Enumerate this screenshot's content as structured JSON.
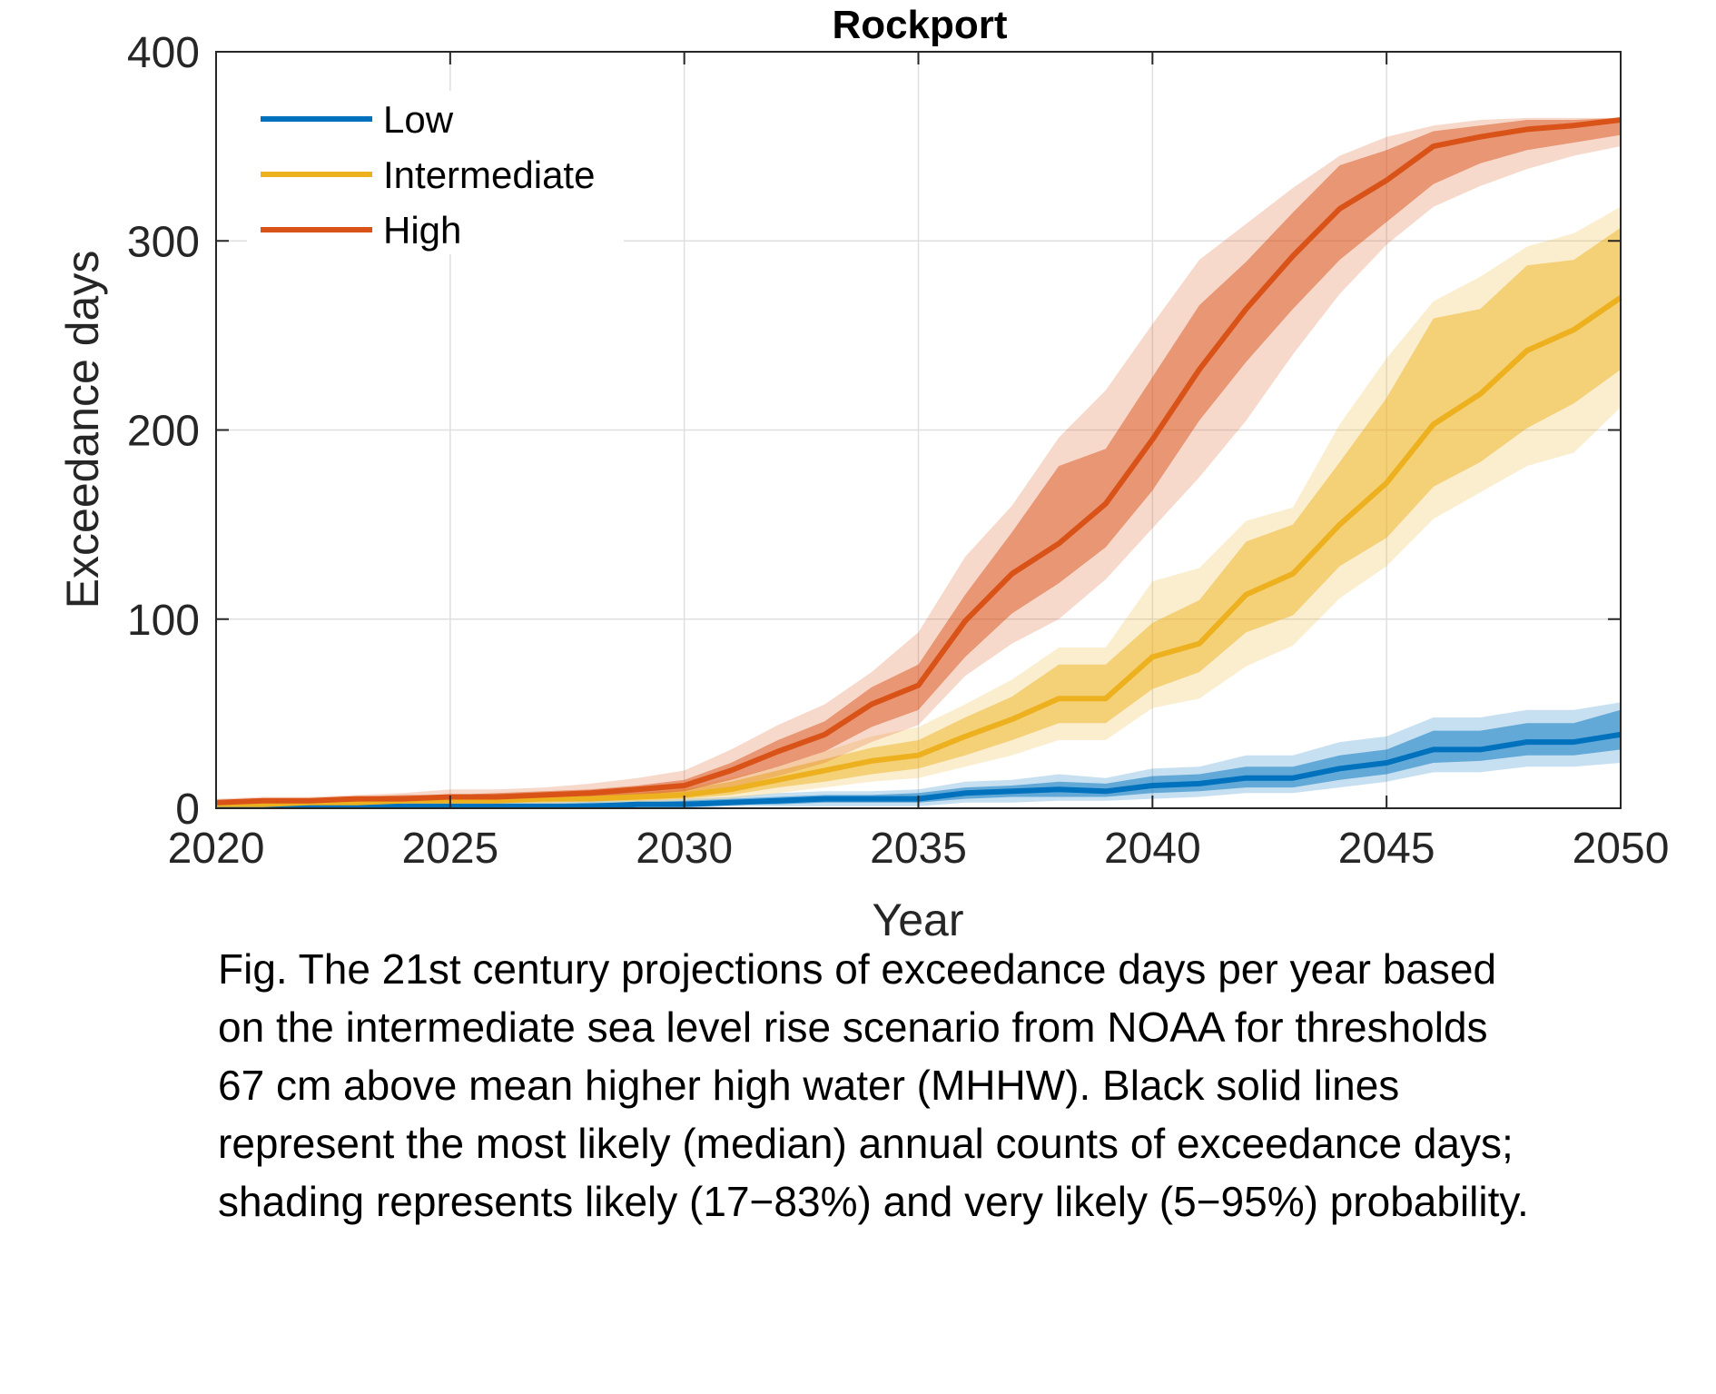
{
  "chart_data": {
    "type": "line",
    "title": "Rockport",
    "xlabel": "Year",
    "ylabel": "Exceedance days",
    "xlim": [
      2020,
      2050
    ],
    "ylim": [
      0,
      400
    ],
    "xticks": [
      2020,
      2025,
      2030,
      2035,
      2040,
      2045,
      2050
    ],
    "yticks": [
      0,
      100,
      200,
      300,
      400
    ],
    "grid": true,
    "legend_position": "top-left",
    "x": [
      2020,
      2021,
      2022,
      2023,
      2024,
      2025,
      2026,
      2027,
      2028,
      2029,
      2030,
      2031,
      2032,
      2033,
      2034,
      2035,
      2036,
      2037,
      2038,
      2039,
      2040,
      2041,
      2042,
      2043,
      2044,
      2045,
      2046,
      2047,
      2048,
      2049,
      2050
    ],
    "series": [
      {
        "name": "Low",
        "color": "#0072BD",
        "median": [
          1,
          1,
          1,
          1,
          1,
          1,
          1,
          1,
          1,
          2,
          2,
          3,
          4,
          5,
          5,
          5,
          8,
          9,
          10,
          9,
          12,
          13,
          16,
          16,
          21,
          24,
          31,
          31,
          35,
          35,
          39
        ],
        "likely_low": [
          0,
          0,
          0,
          0,
          0,
          0,
          0,
          0,
          1,
          1,
          1,
          2,
          2,
          3,
          3,
          3,
          5,
          6,
          6,
          6,
          8,
          9,
          11,
          11,
          15,
          18,
          24,
          25,
          28,
          28,
          31
        ],
        "likely_high": [
          2,
          2,
          2,
          2,
          2,
          2,
          2,
          2,
          3,
          3,
          4,
          5,
          6,
          7,
          7,
          8,
          11,
          12,
          14,
          13,
          17,
          18,
          22,
          22,
          28,
          31,
          41,
          41,
          45,
          45,
          52
        ],
        "very_likely_low": [
          0,
          0,
          0,
          0,
          0,
          0,
          0,
          0,
          0,
          0,
          0,
          1,
          1,
          1,
          1,
          1,
          3,
          3,
          4,
          4,
          5,
          6,
          8,
          8,
          11,
          14,
          19,
          19,
          22,
          22,
          24
        ],
        "very_likely_high": [
          3,
          3,
          3,
          3,
          3,
          3,
          3,
          3,
          4,
          4,
          5,
          6,
          8,
          9,
          9,
          10,
          14,
          15,
          18,
          16,
          21,
          22,
          28,
          28,
          35,
          38,
          48,
          48,
          52,
          52,
          56
        ]
      },
      {
        "name": "Intermediate",
        "color": "#EDB120",
        "median": [
          2,
          2,
          3,
          3,
          4,
          4,
          4,
          5,
          5,
          6,
          7,
          10,
          15,
          20,
          25,
          28,
          38,
          47,
          58,
          58,
          80,
          87,
          113,
          124,
          150,
          172,
          203,
          219,
          242,
          253,
          270
        ],
        "likely_low": [
          1,
          2,
          2,
          2,
          3,
          3,
          3,
          3,
          4,
          4,
          5,
          7,
          11,
          14,
          18,
          21,
          28,
          36,
          45,
          45,
          63,
          72,
          93,
          102,
          128,
          143,
          170,
          183,
          201,
          214,
          232
        ],
        "likely_high": [
          3,
          4,
          4,
          4,
          5,
          5,
          6,
          6,
          7,
          8,
          10,
          14,
          20,
          26,
          32,
          36,
          48,
          59,
          76,
          76,
          98,
          110,
          141,
          150,
          183,
          217,
          259,
          264,
          287,
          290,
          307
        ],
        "very_likely_low": [
          1,
          1,
          1,
          2,
          2,
          2,
          2,
          2,
          3,
          3,
          4,
          5,
          8,
          11,
          14,
          16,
          22,
          28,
          36,
          36,
          53,
          58,
          75,
          86,
          111,
          128,
          153,
          167,
          181,
          188,
          212
        ],
        "very_likely_high": [
          4,
          4,
          5,
          5,
          6,
          6,
          7,
          7,
          8,
          9,
          11,
          16,
          22,
          30,
          38,
          43,
          55,
          68,
          85,
          85,
          120,
          127,
          152,
          159,
          203,
          238,
          268,
          281,
          297,
          304,
          318
        ]
      },
      {
        "name": "High",
        "color": "#D95319",
        "median": [
          3,
          4,
          4,
          5,
          5,
          6,
          6,
          7,
          8,
          10,
          12,
          20,
          30,
          39,
          55,
          65,
          99,
          124,
          140,
          161,
          195,
          232,
          264,
          292,
          317,
          332,
          350,
          355,
          359,
          361,
          364
        ],
        "likely_low": [
          2,
          3,
          3,
          4,
          4,
          4,
          5,
          5,
          6,
          7,
          9,
          15,
          22,
          30,
          43,
          52,
          80,
          103,
          119,
          138,
          168,
          205,
          236,
          264,
          290,
          310,
          330,
          341,
          348,
          352,
          356
        ],
        "likely_high": [
          4,
          5,
          5,
          6,
          7,
          7,
          8,
          9,
          10,
          12,
          15,
          24,
          36,
          46,
          64,
          76,
          113,
          146,
          181,
          190,
          228,
          266,
          289,
          315,
          340,
          348,
          358,
          361,
          364,
          364,
          365
        ],
        "very_likely_low": [
          1,
          2,
          2,
          3,
          3,
          3,
          4,
          4,
          5,
          5,
          7,
          11,
          17,
          24,
          35,
          44,
          70,
          87,
          100,
          121,
          148,
          175,
          205,
          240,
          272,
          298,
          318,
          329,
          338,
          345,
          350
        ],
        "very_likely_high": [
          5,
          6,
          6,
          7,
          8,
          10,
          10,
          11,
          13,
          16,
          20,
          31,
          44,
          55,
          72,
          93,
          133,
          160,
          196,
          221,
          256,
          290,
          309,
          328,
          345,
          355,
          361,
          364,
          365,
          365,
          365
        ]
      }
    ]
  },
  "caption": {
    "lines": [
      "Fig. The 21st century projections of exceedance days per year based",
      "on the intermediate sea level rise scenario from NOAA for thresholds",
      "67 cm above mean higher high water (MHHW). Black solid lines",
      "represent the most likely (median) annual counts of exceedance days;",
      "shading represents likely (17−83%) and very likely (5−95%) probability."
    ]
  }
}
